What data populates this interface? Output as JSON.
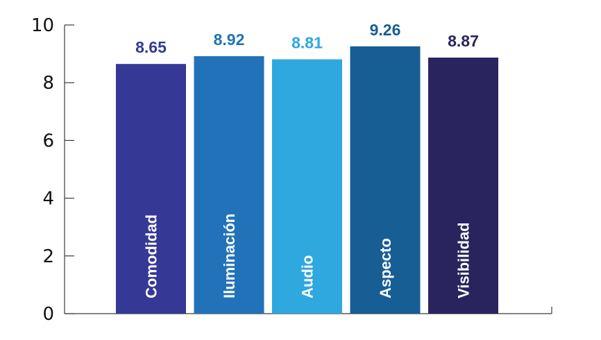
{
  "chart_data": {
    "type": "bar",
    "title": "",
    "xlabel": "",
    "ylabel": "",
    "categories": [
      "Comodidad",
      "Iluminación",
      "Audio",
      "Aspecto",
      "Visibilidad"
    ],
    "values": [
      8.65,
      8.92,
      8.81,
      9.26,
      8.87
    ],
    "value_labels": [
      "8.65",
      "8.92",
      "8.81",
      "9.26",
      "8.87"
    ],
    "colors": [
      "#363896",
      "#2272B9",
      "#2EA8DF",
      "#175E94",
      "#29245E"
    ],
    "ylim": [
      0,
      10
    ],
    "yticks": [
      0,
      2,
      4,
      6,
      8,
      10
    ],
    "ytick_labels": [
      "0",
      "2",
      "4",
      "6",
      "8",
      "10"
    ],
    "grid": false,
    "legend": "none",
    "category_label_placement": "inside-bar-rotated"
  }
}
